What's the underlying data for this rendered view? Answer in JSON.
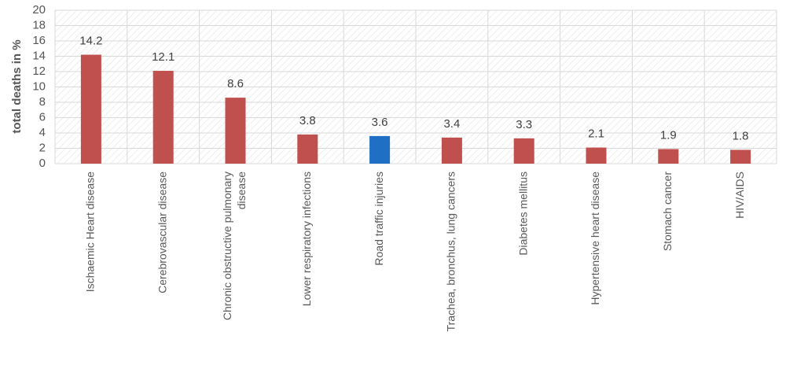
{
  "chart_data": {
    "type": "bar",
    "title": "",
    "xlabel": "",
    "ylabel": "total deaths in %",
    "ylim": [
      0,
      20
    ],
    "y_ticks": [
      0,
      2,
      4,
      6,
      8,
      10,
      12,
      14,
      16,
      18,
      20
    ],
    "grid": true,
    "legend": "none",
    "categories": [
      "Ischaemic Heart disease",
      "Cerebrovascular disease",
      "Chronic obstructive pulmonary disease",
      "Lower respiratory infections",
      "Road traffic injuries",
      "Trachea, bronchus, lung cancers",
      "Diabetes mellitus",
      "Hypertensive heart disease",
      "Stomach cancer",
      "HIV/AIDS"
    ],
    "values": [
      14.2,
      12.1,
      8.6,
      3.8,
      3.6,
      3.4,
      3.3,
      2.1,
      1.9,
      1.8
    ],
    "data_labels": [
      "14.2",
      "12.1",
      "8.6",
      "3.8",
      "3.6",
      "3.4",
      "3.3",
      "2.1",
      "1.9",
      "1.8"
    ],
    "colors": {
      "default_bar": "#c0504d",
      "highlight_bar": "#1f6fc5",
      "gridline": "#d9d9d9",
      "hatch": "#e3e3e3"
    },
    "highlighted_category": "Road traffic injuries"
  }
}
